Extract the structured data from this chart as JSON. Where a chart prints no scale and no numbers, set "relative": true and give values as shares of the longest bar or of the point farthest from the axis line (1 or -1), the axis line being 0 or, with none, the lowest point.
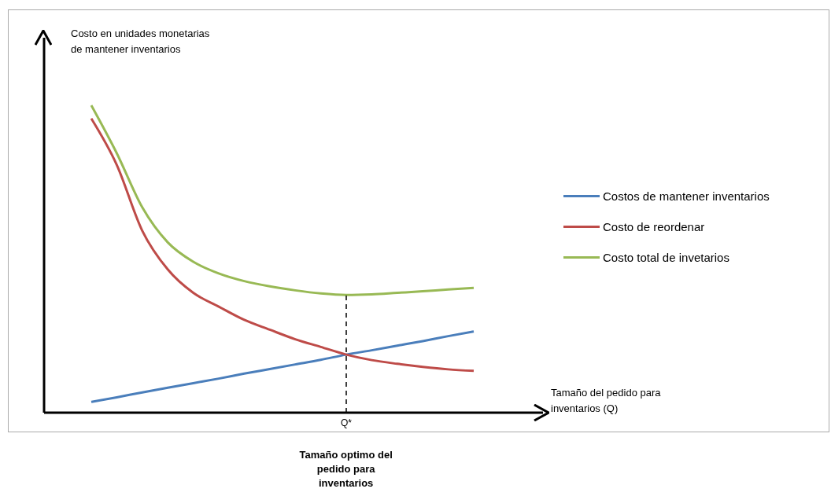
{
  "chart_data": {
    "type": "line",
    "relative": true,
    "ylabel": "Costo en unidades monetarias de mantener inventarios",
    "categories": [
      null,
      null,
      null,
      null,
      null,
      null,
      null,
      null,
      null,
      null,
      null,
      null,
      null,
      null,
      null,
      null
    ],
    "series": [
      {
        "name": "Costos de mantener inventarios",
        "color": "#4a7ebb",
        "values": [
          0.035,
          0.05,
          0.066,
          0.081,
          0.096,
          0.111,
          0.127,
          0.142,
          0.157,
          0.172,
          0.189,
          0.203,
          0.218,
          0.233,
          0.249,
          0.264
        ]
      },
      {
        "name": "Costo de reordenar",
        "color": "#be4b48",
        "values": [
          0.957,
          0.806,
          0.592,
          0.466,
          0.39,
          0.345,
          0.302,
          0.27,
          0.239,
          0.214,
          0.189,
          0.171,
          0.159,
          0.149,
          0.141,
          0.136
        ]
      },
      {
        "name": "Costo total de invetarios",
        "color": "#98b954",
        "values": [
          1,
          0.844,
          0.668,
          0.554,
          0.491,
          0.453,
          0.428,
          0.411,
          0.398,
          0.388,
          0.383,
          0.385,
          0.39,
          0.395,
          0.401,
          0.406
        ]
      }
    ],
    "ref_lines": [
      {
        "axis": "x",
        "value": null,
        "label": "Q*",
        "line_style": "dashed",
        "color": "#000000"
      }
    ],
    "annotations": [
      "Tamaño optimo del pedido para inventarios",
      "Tamaño del pedido para inventarios (Q)"
    ],
    "legend": "right"
  }
}
